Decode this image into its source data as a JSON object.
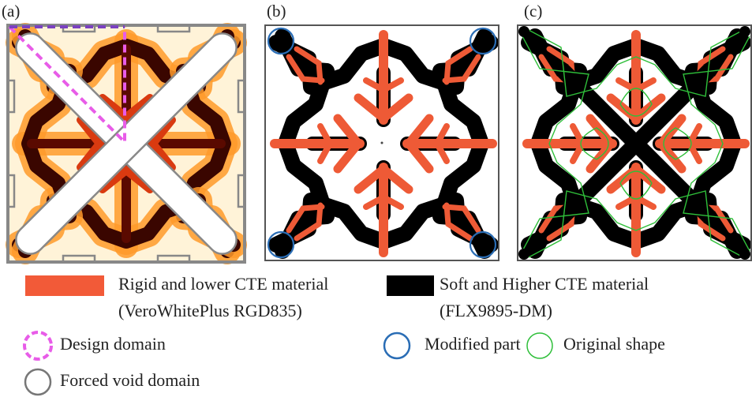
{
  "panels": [
    {
      "label": "(a)"
    },
    {
      "label": "(b)"
    },
    {
      "label": "(c)"
    }
  ],
  "legend": {
    "materials": [
      {
        "name": "Rigid and lower CTE material",
        "detail": "(VeroWhitePlus RGD835)"
      },
      {
        "name": "Soft and Higher CTE material",
        "detail": "(FLX9895-DM)"
      }
    ],
    "symbols": [
      {
        "label": "Design domain"
      },
      {
        "label": "Modified part"
      },
      {
        "label": "Original shape"
      },
      {
        "label": "Forced void domain"
      }
    ]
  }
}
